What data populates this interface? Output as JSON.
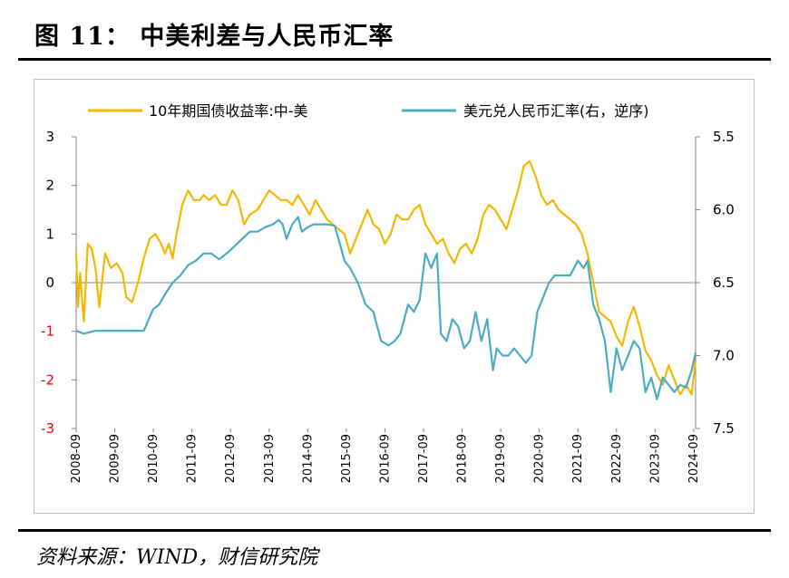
{
  "figure": {
    "title": "图 11：  中美利差与人民币汇率",
    "source": "资料来源：WIND，财信研究院"
  },
  "chart_data": {
    "type": "line",
    "title": "",
    "xlabel": "",
    "x_ticks": [
      "2008-09",
      "2009-09",
      "2010-09",
      "2011-09",
      "2012-09",
      "2013-09",
      "2014-09",
      "2015-09",
      "2016-09",
      "2017-09",
      "2018-09",
      "2019-09",
      "2020-09",
      "2021-09",
      "2022-09",
      "2023-09",
      "2024-09"
    ],
    "y_left": {
      "ylim": [
        -3,
        3
      ],
      "ticks": [
        "3",
        "2",
        "1",
        "0",
        "-1",
        "-2",
        "-3"
      ],
      "negative_color": "#ff0000"
    },
    "y_right": {
      "ylim": [
        5.5,
        7.5
      ],
      "inverted": true,
      "ticks": [
        "5.5",
        "6.0",
        "6.5",
        "7.0",
        "7.5"
      ]
    },
    "legend_position": "top",
    "series": [
      {
        "name": "10年期国债收益率:中-美",
        "axis": "left",
        "color": "#f5b800",
        "x": [
          2008.7,
          2008.75,
          2008.8,
          2008.9,
          2009.0,
          2009.1,
          2009.2,
          2009.3,
          2009.45,
          2009.6,
          2009.75,
          2009.9,
          2010.0,
          2010.15,
          2010.3,
          2010.45,
          2010.6,
          2010.75,
          2010.9,
          2011.0,
          2011.1,
          2011.2,
          2011.3,
          2011.45,
          2011.6,
          2011.75,
          2011.9,
          2012.0,
          2012.15,
          2012.3,
          2012.45,
          2012.6,
          2012.75,
          2012.9,
          2013.05,
          2013.2,
          2013.4,
          2013.55,
          2013.7,
          2013.85,
          2014.0,
          2014.15,
          2014.3,
          2014.45,
          2014.6,
          2014.75,
          2014.9,
          2015.05,
          2015.2,
          2015.35,
          2015.5,
          2015.65,
          2015.8,
          2015.95,
          2016.1,
          2016.25,
          2016.4,
          2016.55,
          2016.7,
          2016.85,
          2017.0,
          2017.15,
          2017.3,
          2017.45,
          2017.6,
          2017.75,
          2017.9,
          2018.05,
          2018.2,
          2018.35,
          2018.5,
          2018.65,
          2018.8,
          2018.95,
          2019.1,
          2019.25,
          2019.4,
          2019.55,
          2019.7,
          2019.85,
          2020.0,
          2020.15,
          2020.3,
          2020.45,
          2020.6,
          2020.75,
          2020.9,
          2021.05,
          2021.2,
          2021.35,
          2021.5,
          2021.65,
          2021.8,
          2021.95,
          2022.1,
          2022.25,
          2022.4,
          2022.55,
          2022.7,
          2022.85,
          2023.0,
          2023.15,
          2023.3,
          2023.45,
          2023.6,
          2023.75,
          2023.9,
          2024.05,
          2024.2,
          2024.35,
          2024.5,
          2024.65,
          2024.75
        ],
        "values": [
          0.6,
          -0.5,
          0.2,
          -0.8,
          0.8,
          0.7,
          0.3,
          -0.5,
          0.6,
          0.3,
          0.4,
          0.2,
          -0.3,
          -0.4,
          0.0,
          0.5,
          0.9,
          1.0,
          0.8,
          0.6,
          0.8,
          0.5,
          1.0,
          1.6,
          1.9,
          1.7,
          1.7,
          1.8,
          1.7,
          1.8,
          1.6,
          1.6,
          1.9,
          1.7,
          1.2,
          1.4,
          1.5,
          1.7,
          1.9,
          1.8,
          1.7,
          1.7,
          1.6,
          1.8,
          1.6,
          1.4,
          1.7,
          1.5,
          1.3,
          1.2,
          1.1,
          1.0,
          0.6,
          0.9,
          1.2,
          1.5,
          1.2,
          1.1,
          0.8,
          1.0,
          1.4,
          1.3,
          1.3,
          1.5,
          1.6,
          1.2,
          1.0,
          0.8,
          0.9,
          0.6,
          0.4,
          0.7,
          0.8,
          0.6,
          0.9,
          1.4,
          1.6,
          1.5,
          1.3,
          1.1,
          1.5,
          1.9,
          2.4,
          2.5,
          2.2,
          1.8,
          1.6,
          1.7,
          1.5,
          1.4,
          1.3,
          1.2,
          1.0,
          0.6,
          0.0,
          -0.6,
          -0.7,
          -0.8,
          -1.1,
          -1.3,
          -0.8,
          -0.5,
          -0.9,
          -1.4,
          -1.6,
          -1.9,
          -2.1,
          -1.7,
          -2.0,
          -2.3,
          -2.1,
          -2.3,
          -1.6
        ]
      },
      {
        "name": "美元兑人民币汇率(右，逆序)",
        "axis": "right",
        "color": "#4bacc6",
        "x": [
          2008.7,
          2008.9,
          2009.2,
          2009.5,
          2009.8,
          2010.0,
          2010.45,
          2010.55,
          2010.7,
          2010.85,
          2011.0,
          2011.2,
          2011.4,
          2011.6,
          2011.8,
          2012.0,
          2012.2,
          2012.4,
          2012.6,
          2012.8,
          2013.0,
          2013.2,
          2013.4,
          2013.6,
          2013.8,
          2013.95,
          2014.05,
          2014.15,
          2014.3,
          2014.45,
          2014.55,
          2014.7,
          2014.85,
          2015.0,
          2015.2,
          2015.4,
          2015.55,
          2015.65,
          2015.8,
          2016.0,
          2016.2,
          2016.4,
          2016.6,
          2016.8,
          2016.95,
          2017.1,
          2017.3,
          2017.45,
          2017.6,
          2017.75,
          2017.9,
          2018.05,
          2018.15,
          2018.3,
          2018.45,
          2018.6,
          2018.75,
          2018.9,
          2019.05,
          2019.2,
          2019.35,
          2019.5,
          2019.6,
          2019.75,
          2019.9,
          2020.05,
          2020.2,
          2020.35,
          2020.5,
          2020.65,
          2020.8,
          2020.95,
          2021.1,
          2021.3,
          2021.5,
          2021.7,
          2021.85,
          2021.95,
          2022.1,
          2022.25,
          2022.4,
          2022.55,
          2022.7,
          2022.85,
          2023.0,
          2023.15,
          2023.3,
          2023.45,
          2023.6,
          2023.75,
          2023.9,
          2024.05,
          2024.2,
          2024.35,
          2024.5,
          2024.65,
          2024.75
        ],
        "values": [
          6.83,
          6.85,
          6.83,
          6.83,
          6.83,
          6.83,
          6.83,
          6.77,
          6.68,
          6.65,
          6.58,
          6.5,
          6.45,
          6.38,
          6.35,
          6.3,
          6.3,
          6.34,
          6.3,
          6.25,
          6.2,
          6.15,
          6.15,
          6.12,
          6.1,
          6.07,
          6.1,
          6.2,
          6.1,
          6.05,
          6.15,
          6.12,
          6.1,
          6.1,
          6.1,
          6.11,
          6.25,
          6.35,
          6.4,
          6.5,
          6.65,
          6.7,
          6.9,
          6.93,
          6.9,
          6.85,
          6.65,
          6.7,
          6.62,
          6.3,
          6.4,
          6.3,
          6.85,
          6.9,
          6.75,
          6.8,
          6.95,
          6.9,
          6.7,
          6.9,
          6.75,
          7.1,
          6.95,
          7.0,
          7.0,
          6.95,
          7.0,
          7.05,
          7.0,
          6.7,
          6.6,
          6.5,
          6.45,
          6.45,
          6.45,
          6.35,
          6.4,
          6.35,
          6.65,
          6.75,
          6.9,
          7.25,
          6.95,
          7.1,
          7.0,
          6.9,
          6.95,
          7.25,
          7.15,
          7.3,
          7.15,
          7.2,
          7.25,
          7.2,
          7.22,
          7.1,
          6.98
        ]
      }
    ]
  }
}
